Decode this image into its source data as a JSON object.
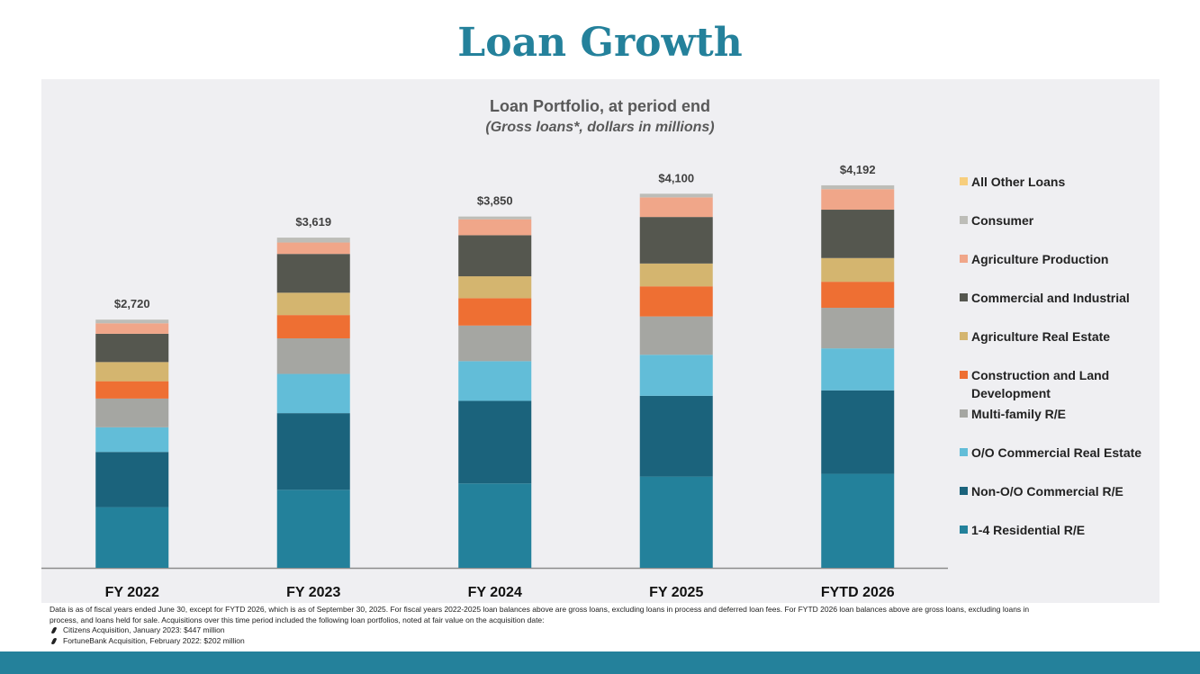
{
  "page": {
    "title": "Loan Growth"
  },
  "chart_data": {
    "type": "bar",
    "stacked": true,
    "title": "Loan Portfolio, at period end",
    "subtitle": "(Gross loans*, dollars in millions)",
    "categories": [
      "FY 2022",
      "FY 2023",
      "FY 2024",
      "FY 2025",
      "FYTD 2026"
    ],
    "totals": [
      "$2,720",
      "$3,619",
      "$3,850",
      "$4,100",
      "$4,192"
    ],
    "total_values": [
      2720,
      3619,
      3850,
      4100,
      4192
    ],
    "ylim": [
      0,
      4300
    ],
    "legend_position": "right",
    "series": [
      {
        "name": "1-4 Residential R/E",
        "color": "#23819b",
        "values": [
          665,
          855,
          925,
          1000,
          1030
        ]
      },
      {
        "name": "Non-O/O Commercial R/E",
        "color": "#1b637c",
        "values": [
          605,
          840,
          905,
          885,
          915
        ]
      },
      {
        "name": "O/O Commercial Real Estate",
        "color": "#62bdd8",
        "values": [
          270,
          430,
          435,
          450,
          460
        ]
      },
      {
        "name": "Multi-family R/E",
        "color": "#a5a6a2",
        "values": [
          315,
          390,
          390,
          420,
          445
        ]
      },
      {
        "name": "Construction and Land Development",
        "color": "#ee6f33",
        "values": [
          190,
          255,
          300,
          330,
          285
        ]
      },
      {
        "name": "Agriculture Real Estate",
        "color": "#d4b56f",
        "values": [
          210,
          245,
          240,
          250,
          260
        ]
      },
      {
        "name": "Commercial and Industrial",
        "color": "#55574f",
        "values": [
          310,
          425,
          450,
          510,
          530
        ]
      },
      {
        "name": "Agriculture Production",
        "color": "#f0a689",
        "values": [
          115,
          125,
          175,
          215,
          225
        ]
      },
      {
        "name": "Consumer",
        "color": "#bdbdb8",
        "values": [
          40,
          54,
          30,
          40,
          42
        ]
      },
      {
        "name": "All Other Loans",
        "color": "#f7ce7d",
        "values": [
          0,
          0,
          0,
          0,
          0
        ]
      }
    ],
    "legend_order": [
      "All Other Loans",
      "Consumer",
      "Agriculture Production",
      "Commercial and Industrial",
      "Agriculture Real Estate",
      "Construction and Land Development",
      "Multi-family R/E",
      "O/O Commercial Real Estate",
      "Non-O/O Commercial R/E",
      "1-4 Residential R/E"
    ],
    "legend_labels": [
      "All Other Loans",
      "Consumer",
      "Agriculture Production",
      "Commercial and Industrial",
      "Agriculture Real Estate",
      "Construction and Land Development",
      "Multi-family R/E",
      "O/O Commercial Real Estate",
      "Non-O/O Commercial R/E",
      "1-4 Residential R/E"
    ]
  },
  "footnote": {
    "text": "Data is as of fiscal years ended June 30, except for FYTD 2026, which is as of September 30, 2025. For fiscal years 2022-2025 loan balances above are gross loans, excluding loans in process and deferred loan fees. For FYTD 2026 loan balances above are gross loans, excluding loans in process, and loans held for sale. Acquisitions over this time period included the following loan portfolios, noted at fair value on the acquisition date:",
    "bullets": [
      "Citizens Acquisition, January 2023: $447 million",
      "FortuneBank Acquisition, February 2022: $202 million"
    ]
  }
}
